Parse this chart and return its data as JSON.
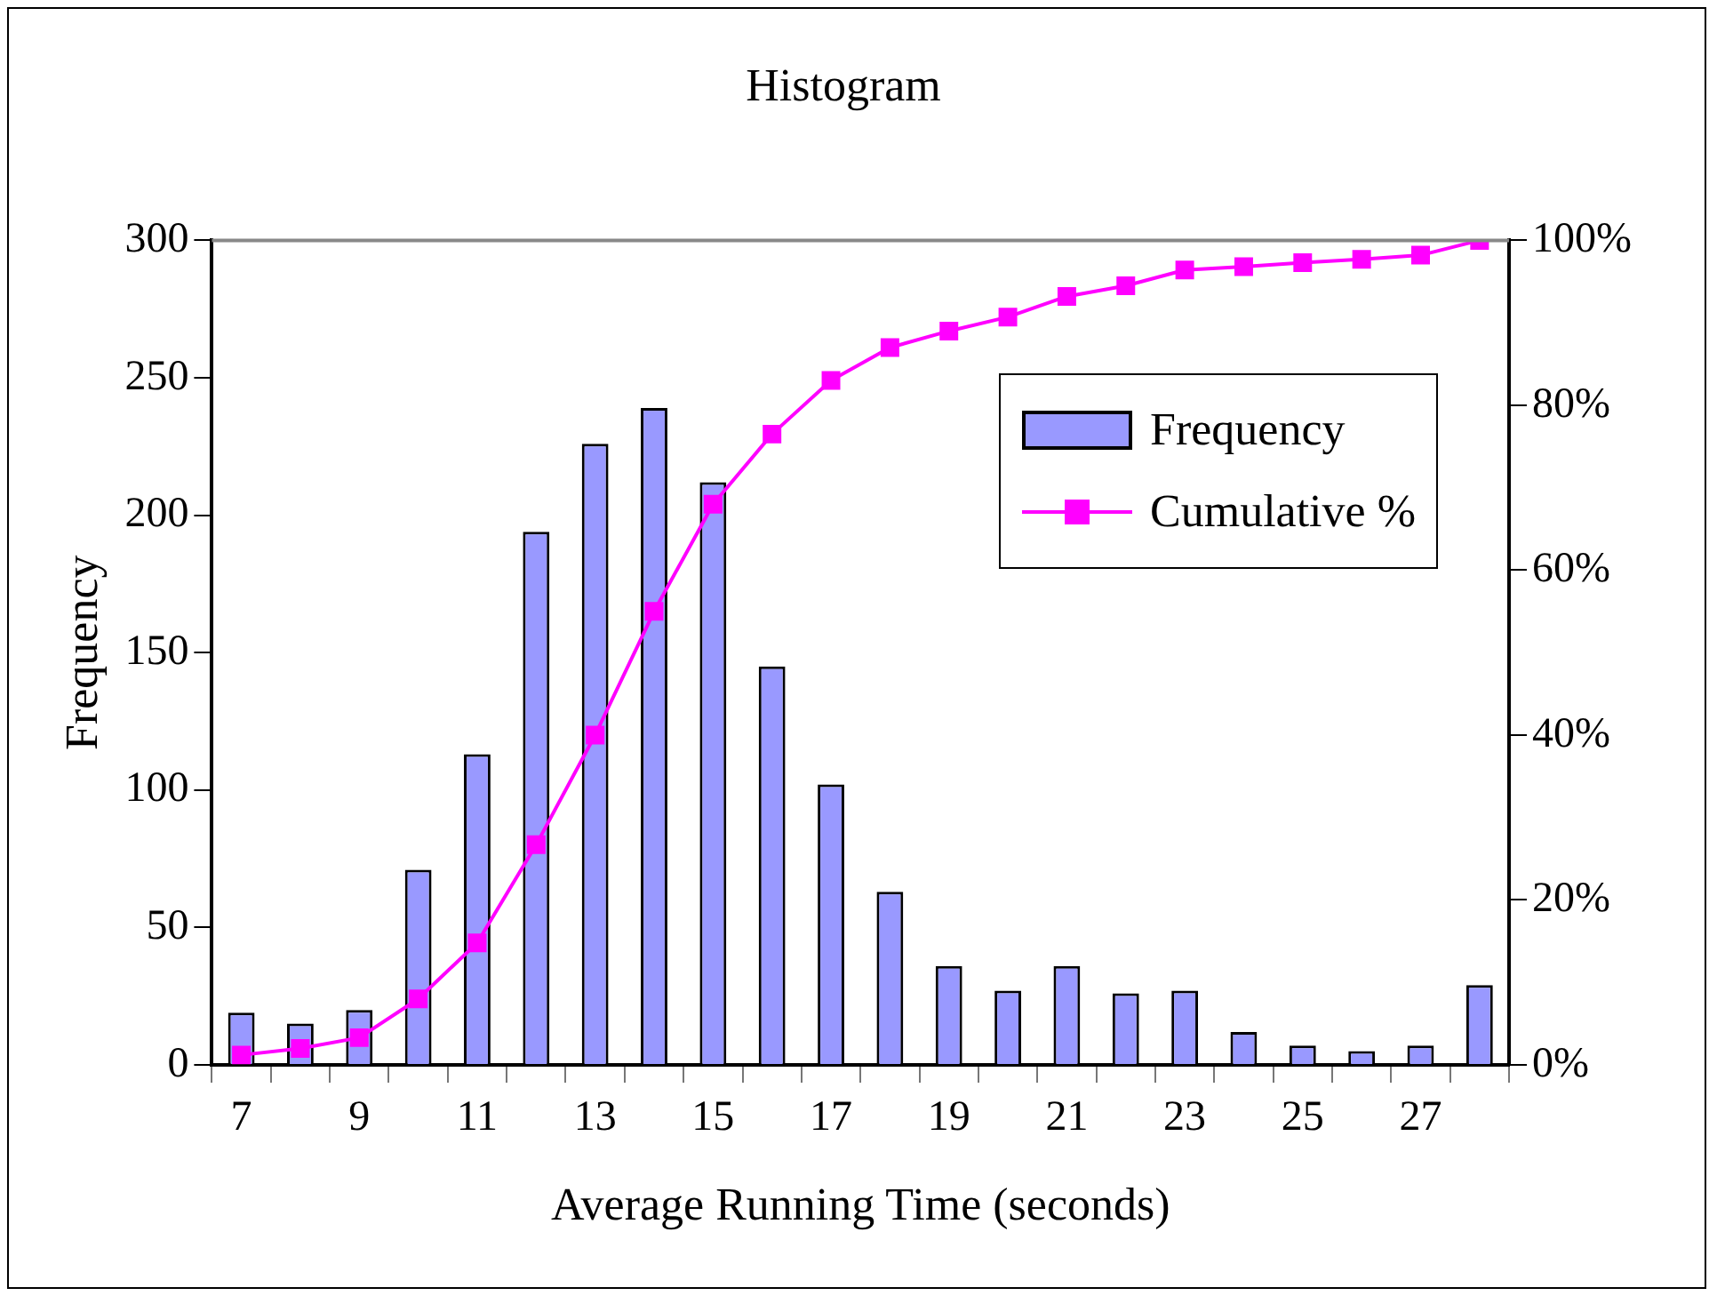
{
  "chart_data": {
    "type": "bar",
    "title": "Histogram",
    "xlabel": "Average Running Time (seconds)",
    "ylabel": "Frequency",
    "categories": [
      "7",
      null,
      "9",
      null,
      "11",
      null,
      "13",
      null,
      "15",
      null,
      "17",
      null,
      "19",
      null,
      "21",
      null,
      "23",
      null,
      "25",
      null,
      "27",
      null
    ],
    "series": [
      {
        "name": "Frequency",
        "color": "#9999ff",
        "values": [
          19,
          15,
          20,
          71,
          113,
          194,
          226,
          239,
          212,
          145,
          102,
          63,
          36,
          27,
          36,
          26,
          27,
          12,
          7,
          5,
          7,
          29
        ]
      },
      {
        "name": "Cumulative %",
        "type": "line",
        "axis": "y2",
        "color": "#ff00ff",
        "marker": "square",
        "values": [
          1.2,
          2,
          3.3,
          8,
          14.8,
          26.7,
          40,
          55,
          68,
          76.5,
          83,
          87,
          89,
          90.7,
          93.2,
          94.5,
          96.4,
          96.8,
          97.3,
          97.7,
          98.2,
          100
        ]
      }
    ],
    "ylim": [
      0,
      300
    ],
    "yticks": [
      0,
      50,
      100,
      150,
      200,
      250,
      300
    ],
    "y2lim": [
      0,
      100
    ],
    "y2ticks": [
      {
        "value": 0,
        "label": "0%"
      },
      {
        "value": 20,
        "label": "20%"
      },
      {
        "value": 40,
        "label": "40%"
      },
      {
        "value": 60,
        "label": "60%"
      },
      {
        "value": 80,
        "label": "80%"
      },
      {
        "value": 100,
        "label": "100%"
      }
    ],
    "grid": false,
    "legend": "top right"
  }
}
